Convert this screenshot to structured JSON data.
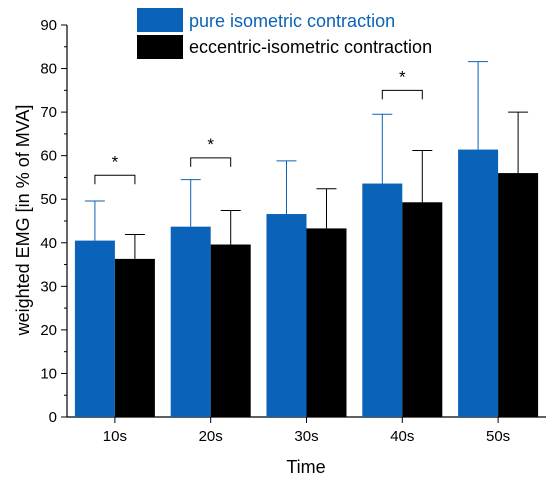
{
  "chart_data": {
    "type": "bar",
    "title": "",
    "xlabel": "Time",
    "ylabel": "weighted EMG [in % of MVA]",
    "categories": [
      "10s",
      "20s",
      "30s",
      "40s",
      "50s"
    ],
    "ylim": [
      0,
      90
    ],
    "yticks": [
      0,
      10,
      20,
      30,
      40,
      50,
      60,
      70,
      80,
      90
    ],
    "grid": false,
    "legend_position": "top-center",
    "series": [
      {
        "name": "pure isometric contraction",
        "color": "#0a63b8",
        "values": [
          40.5,
          43.7,
          46.6,
          53.6,
          61.4
        ],
        "error_upper": [
          49.6,
          54.5,
          58.8,
          69.5,
          81.6
        ]
      },
      {
        "name": "eccentric-isometric contraction",
        "color": "#000000",
        "values": [
          36.3,
          39.6,
          43.3,
          49.3,
          56.0
        ],
        "error_upper": [
          41.9,
          47.4,
          52.4,
          61.2,
          70.0
        ]
      }
    ],
    "annotations": [
      {
        "category": "10s",
        "text": "*",
        "bracket_y": 55.5
      },
      {
        "category": "20s",
        "text": "*",
        "bracket_y": 59.5
      },
      {
        "category": "40s",
        "text": "*",
        "bracket_y": 75.0
      }
    ]
  }
}
